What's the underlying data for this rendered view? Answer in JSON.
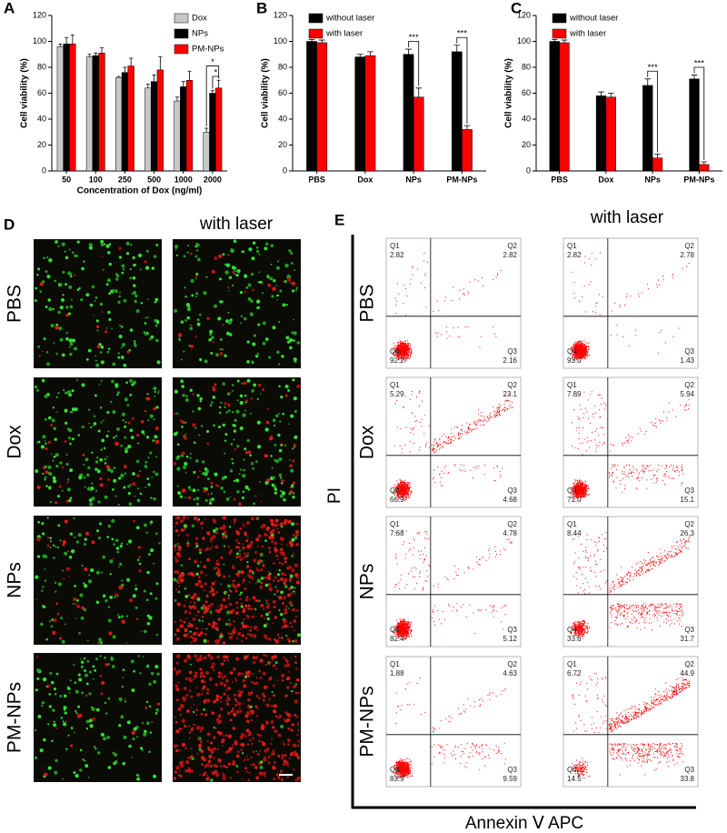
{
  "chart_data": [
    {
      "type": "bar",
      "panel": "A",
      "xlabel": "Concentration of Dox (ng/ml)",
      "ylabel": "Cell viability (%)",
      "categories": [
        "50",
        "100",
        "250",
        "500",
        "1000",
        "2000"
      ],
      "series": [
        {
          "name": "Dox",
          "color": "#c8c8c8",
          "values": [
            96,
            88,
            72,
            64,
            54,
            30
          ],
          "errors": [
            2,
            2,
            1,
            3,
            3,
            3
          ]
        },
        {
          "name": "NPs",
          "color": "#000000",
          "values": [
            98,
            89,
            76,
            69,
            65,
            60
          ],
          "errors": [
            5,
            2,
            4,
            5,
            4,
            2
          ]
        },
        {
          "name": "PM-NPs",
          "color": "#ff0000",
          "values": [
            98,
            91,
            81,
            78,
            70,
            64
          ],
          "errors": [
            7,
            4,
            6,
            10,
            7,
            6
          ]
        }
      ],
      "ylim": [
        0,
        120
      ],
      "yticks": [
        0,
        20,
        40,
        60,
        80,
        100,
        120
      ],
      "legend": "upper right",
      "annotations": [
        "*",
        "*"
      ]
    },
    {
      "type": "bar",
      "panel": "B",
      "ylabel": "Cell viability (%)",
      "categories": [
        "PBS",
        "Dox",
        "NPs",
        "PM-NPs"
      ],
      "series": [
        {
          "name": "without laser",
          "color": "#000000",
          "values": [
            100,
            88,
            90,
            92
          ],
          "errors": [
            1.5,
            2,
            4,
            5
          ]
        },
        {
          "name": "with laser",
          "color": "#ff0000",
          "values": [
            99,
            89,
            57,
            32
          ],
          "errors": [
            2,
            3,
            7,
            3
          ]
        }
      ],
      "ylim": [
        0,
        120
      ],
      "yticks": [
        0,
        20,
        40,
        60,
        80,
        100,
        120
      ],
      "legend": "upper left",
      "annotations": [
        "***",
        "***"
      ]
    },
    {
      "type": "bar",
      "panel": "C",
      "ylabel": "Cell viability (%)",
      "categories": [
        "PBS",
        "Dox",
        "NPs",
        "PM-NPs"
      ],
      "series": [
        {
          "name": "without laser",
          "color": "#000000",
          "values": [
            100,
            58,
            66,
            71
          ],
          "errors": [
            1.5,
            3,
            5,
            3
          ]
        },
        {
          "name": "with laser",
          "color": "#ff0000",
          "values": [
            99,
            57,
            10,
            5
          ],
          "errors": [
            2,
            3,
            3,
            2
          ]
        }
      ],
      "ylim": [
        0,
        120
      ],
      "yticks": [
        0,
        20,
        40,
        60,
        80,
        100,
        120
      ],
      "legend": "upper left",
      "annotations": [
        "***",
        "***"
      ]
    }
  ],
  "panel_d": {
    "label": "D",
    "column_title": "with laser",
    "rows": [
      "PBS",
      "Dox",
      "NPs",
      "PM-NPs"
    ]
  },
  "panel_e": {
    "label": "E",
    "column_title": "with laser",
    "ylabel": "PI",
    "xlabel": "Annexin Ⅴ APC",
    "rows": [
      "PBS",
      "Dox",
      "NPs",
      "PM-NPs"
    ],
    "quadrant_names": [
      "Q1",
      "Q2",
      "Q3",
      "Q4"
    ],
    "plots": [
      [
        [
          "2.82",
          "2.82",
          "2.16",
          "92.2"
        ],
        [
          "2.82",
          "2.78",
          "1.43",
          "93.0"
        ]
      ],
      [
        [
          "5.29",
          "23.1",
          "4.68",
          "66.9"
        ],
        [
          "7.89",
          "5.94",
          "15.1",
          "71.0"
        ]
      ],
      [
        [
          "7.68",
          "4.78",
          "5.12",
          "82.4"
        ],
        [
          "8.44",
          "26.3",
          "31.7",
          "33.6"
        ]
      ],
      [
        [
          "1.88",
          "4.63",
          "9.59",
          "83.9"
        ],
        [
          "6.72",
          "44.9",
          "33.8",
          "14.5"
        ]
      ]
    ]
  }
}
